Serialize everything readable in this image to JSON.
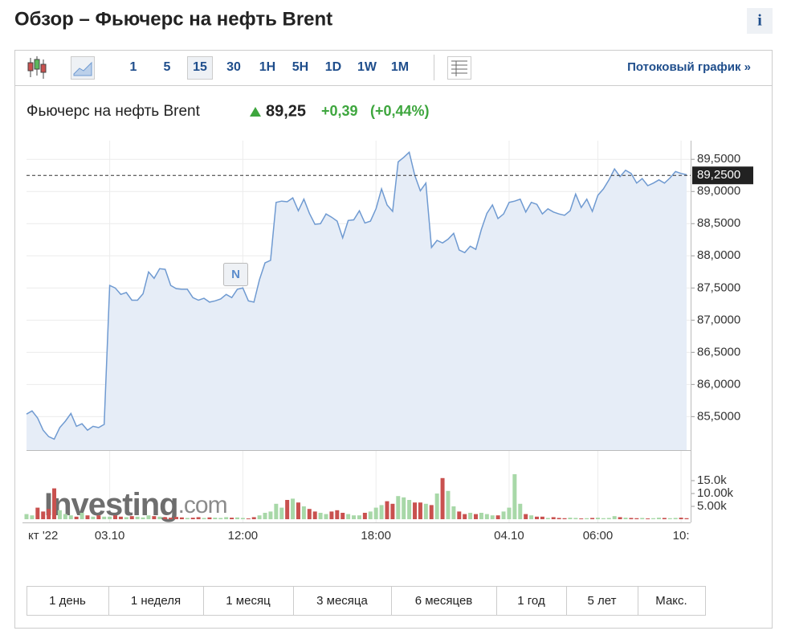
{
  "header": {
    "title": "Обзор – Фьючерс на нефть Brent",
    "info": "i"
  },
  "toolbar": {
    "intervals": [
      "1",
      "5",
      "15",
      "30",
      "1H",
      "5H",
      "1D",
      "1W",
      "1M"
    ],
    "selected": 2,
    "streaming": "Потоковый график »"
  },
  "quote": {
    "price": "89,25",
    "change": "+0,39",
    "change_pct": "(+0,44%)"
  },
  "chart_data": {
    "type": "line",
    "categories": [
      null,
      null,
      null,
      "кт '22",
      null,
      null,
      null,
      null,
      null,
      null,
      null,
      null,
      null,
      null,
      null,
      "03.10",
      null,
      null,
      null,
      null,
      null,
      null,
      null,
      null,
      null,
      null,
      null,
      null,
      null,
      null,
      null,
      null,
      null,
      null,
      null,
      null,
      null,
      null,
      null,
      "12:00",
      null,
      null,
      null,
      null,
      null,
      null,
      null,
      null,
      null,
      null,
      null,
      null,
      null,
      null,
      null,
      null,
      null,
      null,
      null,
      null,
      null,
      null,
      null,
      "18:00",
      null,
      null,
      null,
      null,
      null,
      null,
      null,
      null,
      null,
      null,
      null,
      null,
      null,
      null,
      null,
      null,
      null,
      null,
      null,
      null,
      null,
      null,
      null,
      "04.10",
      null,
      null,
      null,
      null,
      null,
      null,
      null,
      null,
      null,
      null,
      null,
      null,
      null,
      null,
      null,
      "06:00",
      null,
      null,
      null,
      null,
      null,
      null,
      null,
      null,
      null,
      null,
      null,
      null,
      null,
      null,
      "10:",
      null
    ],
    "series": [
      {
        "name": "Фьючерс на нефть Brent",
        "color": "#6f9ad1",
        "fill": "#e6edf7",
        "values": [
          85.54,
          85.59,
          85.48,
          85.29,
          85.19,
          85.15,
          85.33,
          85.43,
          85.55,
          85.35,
          85.39,
          85.29,
          85.35,
          85.33,
          85.38,
          87.54,
          87.5,
          87.4,
          87.43,
          87.31,
          87.31,
          87.41,
          87.75,
          87.65,
          87.8,
          87.79,
          87.54,
          87.49,
          87.48,
          87.48,
          87.35,
          87.31,
          87.34,
          87.28,
          87.3,
          87.33,
          87.4,
          87.35,
          87.48,
          87.5,
          87.3,
          87.28,
          87.63,
          87.89,
          87.93,
          88.83,
          88.85,
          88.84,
          88.9,
          88.7,
          88.88,
          88.66,
          88.49,
          88.5,
          88.65,
          88.6,
          88.54,
          88.28,
          88.55,
          88.56,
          88.7,
          88.51,
          88.54,
          88.73,
          89.04,
          88.79,
          88.69,
          89.46,
          89.53,
          89.61,
          89.25,
          89.01,
          89.13,
          88.13,
          88.24,
          88.2,
          88.26,
          88.35,
          88.09,
          88.05,
          88.15,
          88.1,
          88.41,
          88.66,
          88.79,
          88.58,
          88.65,
          88.83,
          88.85,
          88.88,
          88.68,
          88.83,
          88.8,
          88.65,
          88.73,
          88.68,
          88.65,
          88.63,
          88.7,
          88.96,
          88.75,
          88.88,
          88.69,
          88.94,
          89.04,
          89.18,
          89.35,
          89.23,
          89.33,
          89.28,
          89.13,
          89.2,
          89.09,
          89.13,
          89.18,
          89.13,
          89.21,
          89.31,
          89.28,
          89.26
        ]
      },
      {
        "axis": "y2",
        "color": "#a8d8a8",
        "down_color": "#c9514f",
        "values": [
          2000,
          1500,
          4500,
          3000,
          4000,
          12000,
          3500,
          2000,
          1500,
          1000,
          2500,
          1500,
          1000,
          1500,
          1000,
          1000,
          1500,
          1000,
          800,
          1200,
          1000,
          700,
          1500,
          1200,
          1000,
          800,
          600,
          900,
          700,
          500,
          600,
          800,
          500,
          700,
          600,
          500,
          800,
          600,
          700,
          500,
          300,
          800,
          1500,
          2500,
          3000,
          6000,
          4500,
          7500,
          8000,
          6500,
          5000,
          4000,
          3000,
          2500,
          2000,
          3000,
          3500,
          2500,
          2000,
          1500,
          1500,
          2500,
          3000,
          4500,
          5500,
          7000,
          6000,
          9000,
          8500,
          7500,
          6500,
          6500,
          6000,
          5500,
          10000,
          16000,
          11000,
          5000,
          3000,
          2000,
          2500,
          2000,
          2500,
          2000,
          1500,
          1500,
          3000,
          4500,
          17500,
          6000,
          2000,
          1500,
          1000,
          1000,
          500,
          800,
          500,
          400,
          600,
          500,
          300,
          400,
          500,
          600,
          400,
          500,
          1200,
          800,
          600,
          500,
          400,
          500,
          300,
          400,
          600,
          500,
          400,
          500,
          600,
          400
        ]
      }
    ],
    "ylim": [
      84.98,
      89.79
    ],
    "yticks": [
      {
        "value": 85.5,
        "label": "85,5000"
      },
      {
        "value": 86,
        "label": "86,0000"
      },
      {
        "value": 86.5,
        "label": "86,5000"
      },
      {
        "value": 87,
        "label": "87,0000"
      },
      {
        "value": 87.5,
        "label": "87,5000"
      },
      {
        "value": 88,
        "label": "88,0000"
      },
      {
        "value": 88.5,
        "label": "88,5000"
      },
      {
        "value": 89,
        "label": "89,0000"
      },
      {
        "value": 89.5,
        "label": "89,5000"
      }
    ],
    "y2lim": [
      0,
      26875
    ],
    "y2ticks": [
      {
        "value": 5000,
        "label": "5.00k"
      },
      {
        "value": 10000,
        "label": "10.00k"
      },
      {
        "value": 15000,
        "label": "15.0k"
      }
    ],
    "current_price": {
      "value": 89.25,
      "label": "89,2500"
    },
    "grid": true,
    "news_marker": "N",
    "watermark": [
      "Investing",
      ".com"
    ]
  },
  "range_buttons": [
    "1 день",
    "1 неделя",
    "1 месяц",
    "3 месяца",
    "6 месяцев",
    "1 год",
    "5 лет",
    "Макс."
  ]
}
